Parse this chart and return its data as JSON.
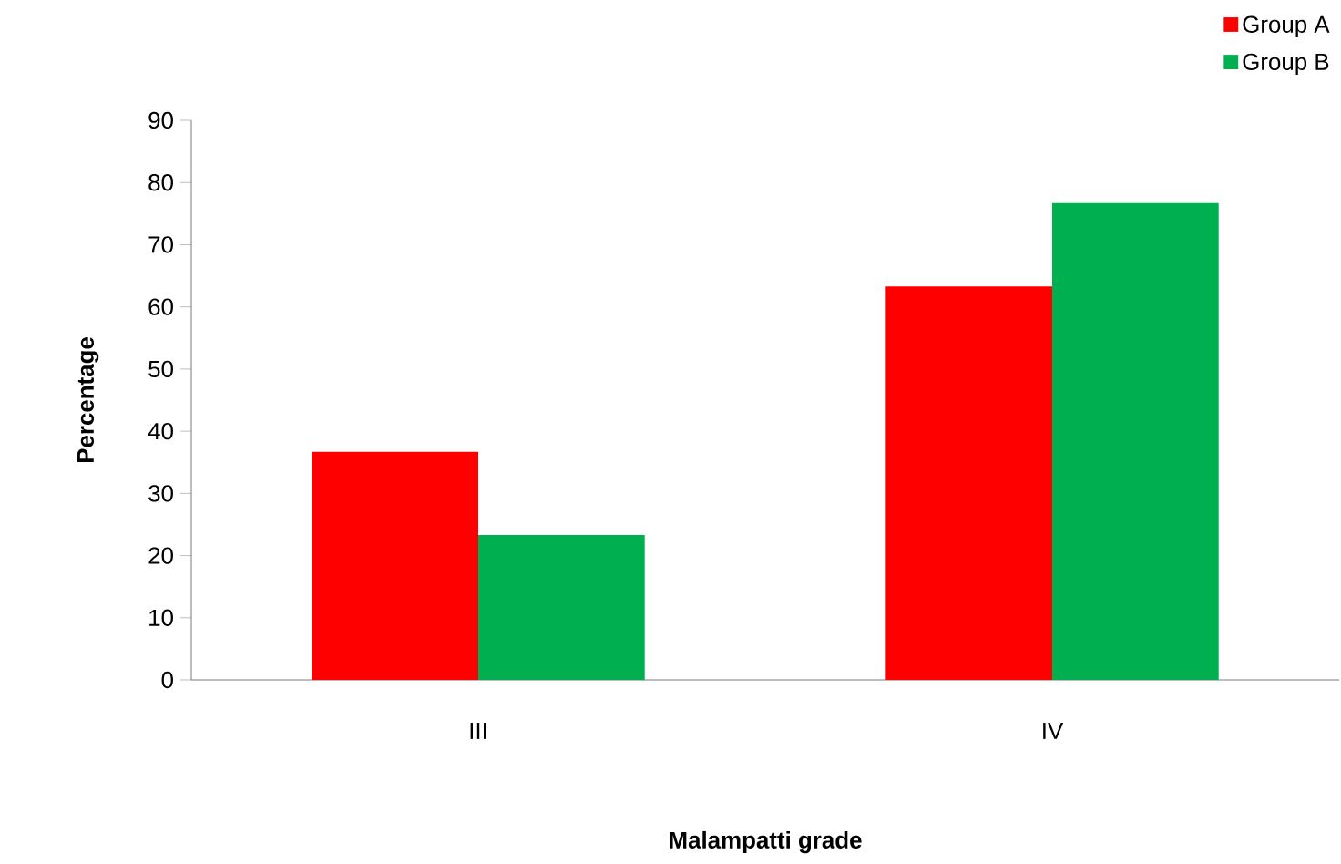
{
  "chart_data": {
    "type": "bar",
    "xlabel": "Malampatti grade",
    "ylabel": "Percentage",
    "categories": [
      "III",
      "IV"
    ],
    "series": [
      {
        "name": "Group A",
        "color": "#ff0000",
        "values": [
          36.7,
          63.3
        ]
      },
      {
        "name": "Group B",
        "color": "#00b050",
        "values": [
          23.3,
          76.7
        ]
      }
    ],
    "ylim": [
      0,
      90
    ],
    "yticks": [
      0,
      10,
      20,
      30,
      40,
      50,
      60,
      70,
      80,
      90
    ],
    "grid": false,
    "legend": "top right"
  }
}
